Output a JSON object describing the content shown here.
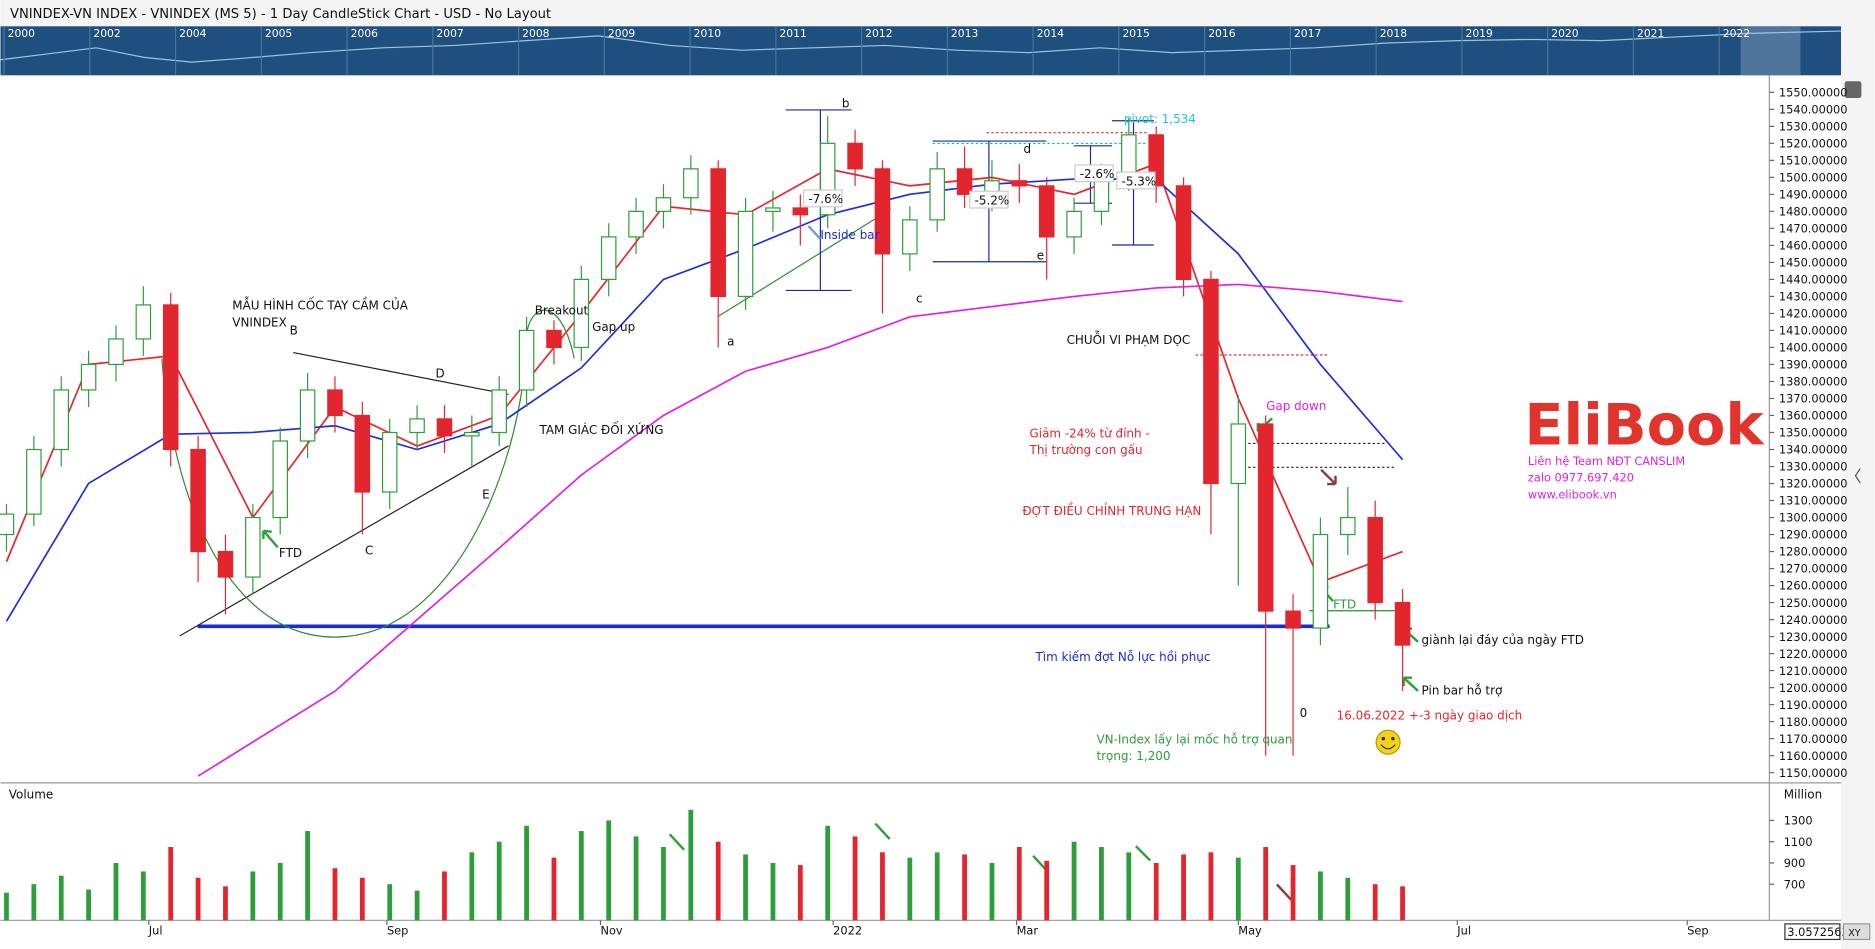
{
  "header": {
    "title": "VNINDEX-VN INDEX - VNINDEX (MS 5) - 1 Day CandleStick Chart - USD - No Layout"
  },
  "navigator": {
    "years": [
      2000,
      2002,
      2004,
      2005,
      2006,
      2007,
      2008,
      2009,
      2010,
      2011,
      2012,
      2013,
      2014,
      2015,
      2016,
      2017,
      2018,
      2019,
      2020,
      2021,
      2022
    ]
  },
  "chart_data": {
    "type": "candlestick",
    "candles": {
      "x": [
        0,
        1,
        2,
        3,
        4,
        5,
        6,
        7,
        8,
        9,
        10,
        11,
        12,
        13,
        14,
        15,
        16,
        17,
        18,
        19,
        20,
        21,
        22,
        23,
        24,
        25,
        26,
        27,
        28,
        29,
        30,
        31,
        32,
        33,
        34,
        35,
        36,
        37,
        38,
        39,
        40,
        41,
        42,
        43,
        44,
        45,
        46,
        47,
        48,
        49,
        50,
        51
      ],
      "open": [
        1290,
        1302,
        1340,
        1375,
        1390,
        1405,
        1425,
        1340,
        1280,
        1265,
        1300,
        1345,
        1375,
        1360,
        1315,
        1350,
        1358,
        1348,
        1350,
        1375,
        1410,
        1400,
        1440,
        1465,
        1480,
        1488,
        1505,
        1430,
        1480,
        1482,
        1478,
        1520,
        1505,
        1455,
        1475,
        1505,
        1490,
        1498,
        1495,
        1465,
        1480,
        1500,
        1525,
        1495,
        1440,
        1320,
        1355,
        1245,
        1235,
        1290,
        1300,
        1250
      ],
      "high": [
        1308,
        1348,
        1383,
        1398,
        1413,
        1436,
        1432,
        1348,
        1290,
        1308,
        1353,
        1385,
        1383,
        1368,
        1358,
        1366,
        1366,
        1360,
        1383,
        1418,
        1416,
        1448,
        1473,
        1488,
        1496,
        1513,
        1510,
        1488,
        1492,
        1490,
        1536,
        1528,
        1510,
        1483,
        1515,
        1518,
        1510,
        1508,
        1500,
        1488,
        1508,
        1535,
        1530,
        1500,
        1445,
        1372,
        1360,
        1255,
        1300,
        1318,
        1310,
        1258
      ],
      "low": [
        1280,
        1295,
        1330,
        1365,
        1380,
        1395,
        1330,
        1262,
        1243,
        1255,
        1290,
        1335,
        1350,
        1290,
        1305,
        1340,
        1338,
        1330,
        1342,
        1365,
        1390,
        1392,
        1430,
        1455,
        1470,
        1478,
        1400,
        1422,
        1468,
        1460,
        1470,
        1495,
        1420,
        1445,
        1468,
        1482,
        1480,
        1485,
        1440,
        1455,
        1472,
        1492,
        1485,
        1430,
        1290,
        1260,
        1160,
        1160,
        1225,
        1278,
        1240,
        1198
      ],
      "close": [
        1302,
        1340,
        1375,
        1390,
        1405,
        1425,
        1340,
        1280,
        1265,
        1300,
        1345,
        1375,
        1360,
        1315,
        1350,
        1358,
        1348,
        1350,
        1375,
        1410,
        1400,
        1440,
        1465,
        1480,
        1488,
        1505,
        1430,
        1480,
        1482,
        1478,
        1520,
        1505,
        1455,
        1475,
        1505,
        1490,
        1498,
        1495,
        1465,
        1480,
        1500,
        1525,
        1495,
        1440,
        1320,
        1355,
        1245,
        1235,
        1290,
        1300,
        1250,
        1225
      ]
    },
    "up_color": "#2e9e3a",
    "down_color": "#e3262e",
    "lines": [
      {
        "color": "#e8242c",
        "x": [
          0,
          3,
          6,
          9,
          12,
          15,
          18,
          21,
          24,
          27,
          30,
          33,
          36,
          39,
          42,
          45,
          48,
          51
        ],
        "values": [
          1274,
          1390,
          1395,
          1300,
          1365,
          1342,
          1360,
          1420,
          1483,
          1478,
          1505,
          1495,
          1500,
          1490,
          1508,
          1370,
          1262,
          1280
        ]
      },
      {
        "color": "#1b2fd6",
        "x": [
          0,
          3,
          6,
          9,
          12,
          15,
          18,
          21,
          24,
          27,
          30,
          33,
          36,
          39,
          42,
          45,
          48,
          51
        ],
        "values": [
          1239,
          1320,
          1349,
          1350,
          1354,
          1340,
          1355,
          1388,
          1440,
          1458,
          1478,
          1490,
          1496,
          1499,
          1499,
          1455,
          1390,
          1334
        ]
      },
      {
        "color": "#e020e0",
        "x": [
          7,
          9,
          12,
          15,
          18,
          21,
          24,
          27,
          30,
          33,
          36,
          39,
          42,
          45,
          48,
          51
        ],
        "values": [
          1148,
          1168,
          1198,
          1240,
          1282,
          1325,
          1360,
          1386,
          1400,
          1418,
          1424,
          1430,
          1435,
          1437,
          1433,
          1427
        ]
      }
    ],
    "xlim": [
      -0.22,
      64.4
    ],
    "xticks": [
      {
        "value": 5.2,
        "label": "Jul"
      },
      {
        "value": 13.9,
        "label": "Sep"
      },
      {
        "value": 21.7,
        "label": "Nov"
      },
      {
        "value": 30.2,
        "label": "2022"
      },
      {
        "value": 36.9,
        "label": "Mar"
      },
      {
        "value": 45,
        "label": "May"
      },
      {
        "value": 53,
        "label": "Jul"
      },
      {
        "value": 61.4,
        "label": "Sep"
      }
    ],
    "ylim": [
      1144,
      1560
    ],
    "yticks": [
      {
        "value": 1150,
        "label": "1150.00000"
      },
      {
        "value": 1160,
        "label": "1160.00000"
      },
      {
        "value": 1170,
        "label": "1170.00000"
      },
      {
        "value": 1180,
        "label": "1180.00000"
      },
      {
        "value": 1190,
        "label": "1190.00000"
      },
      {
        "value": 1200,
        "label": "1200.00000"
      },
      {
        "value": 1210,
        "label": "1210.00000"
      },
      {
        "value": 1220,
        "label": "1220.00000"
      },
      {
        "value": 1230,
        "label": "1230.00000"
      },
      {
        "value": 1240,
        "label": "1240.00000"
      },
      {
        "value": 1250,
        "label": "1250.00000"
      },
      {
        "value": 1260,
        "label": "1260.00000"
      },
      {
        "value": 1270,
        "label": "1270.00000"
      },
      {
        "value": 1280,
        "label": "1280.00000"
      },
      {
        "value": 1290,
        "label": "1290.00000"
      },
      {
        "value": 1300,
        "label": "1300.00000"
      },
      {
        "value": 1310,
        "label": "1310.00000"
      },
      {
        "value": 1320,
        "label": "1320.00000"
      },
      {
        "value": 1330,
        "label": "1330.00000"
      },
      {
        "value": 1340,
        "label": "1340.00000"
      },
      {
        "value": 1350,
        "label": "1350.00000"
      },
      {
        "value": 1360,
        "label": "1360.00000"
      },
      {
        "value": 1370,
        "label": "1370.00000"
      },
      {
        "value": 1380,
        "label": "1380.00000"
      },
      {
        "value": 1390,
        "label": "1390.00000"
      },
      {
        "value": 1400,
        "label": "1400.00000"
      },
      {
        "value": 1410,
        "label": "1410.00000"
      },
      {
        "value": 1420,
        "label": "1420.00000"
      },
      {
        "value": 1430,
        "label": "1430.00000"
      },
      {
        "value": 1440,
        "label": "1440.00000"
      },
      {
        "value": 1450,
        "label": "1450.00000"
      },
      {
        "value": 1460,
        "label": "1460.00000"
      },
      {
        "value": 1470,
        "label": "1470.00000"
      },
      {
        "value": 1480,
        "label": "1480.00000"
      },
      {
        "value": 1490,
        "label": "1490.00000"
      },
      {
        "value": 1500,
        "label": "1500.00000"
      },
      {
        "value": 1510,
        "label": "1510.00000"
      },
      {
        "value": 1520,
        "label": "1520.00000"
      },
      {
        "value": 1530,
        "label": "1530.00000"
      },
      {
        "value": 1540,
        "label": "1540.00000"
      },
      {
        "value": 1550,
        "label": "1550.00000"
      }
    ],
    "grid": false,
    "volume": {
      "label": "Volume",
      "unit": "Million",
      "values": [
        620,
        700,
        780,
        650,
        900,
        820,
        1050,
        760,
        680,
        820,
        900,
        1200,
        850,
        760,
        700,
        640,
        820,
        1000,
        1100,
        1250,
        950,
        1200,
        1300,
        1150,
        1050,
        1400,
        1100,
        980,
        900,
        880,
        1250,
        1150,
        1000,
        950,
        1000,
        980,
        900,
        1050,
        920,
        1100,
        1050,
        1000,
        900,
        980,
        1000,
        950,
        1050,
        880,
        820,
        760,
        700,
        680
      ],
      "ylim": [
        360,
        1620
      ],
      "yticks": [
        700,
        900,
        1100,
        1300
      ]
    },
    "last_value_label": "3.0572563",
    "annotations": [
      "MẪU HÌNH CỐC TAY CẦM CỦA",
      "VNINDEX",
      "B",
      "D",
      "C",
      "E",
      "FTD",
      "Breakout",
      "Gap up",
      "TAM GIÁC ĐỐI XỨNG",
      "a",
      "b",
      "c",
      "d",
      "e",
      "-7.6%",
      "-5.2%",
      "-2.6%",
      "-5.3%",
      "Inside bar",
      "pivot: 1,534",
      "CHUỖI VI PHẠM DỌC",
      "Giảm -24% từ đỉnh -",
      "Thị trường con gấu",
      "ĐỢT ĐIỀU CHỈNH TRUNG HẠN",
      "Gap down",
      "FTD",
      "giành lại đáy của ngày FTD",
      "Pin bar hỗ trợ",
      "16.06.2022 +-3 ngày giao dịch",
      "0",
      "Tìm kiếm đợt Nỗ lực hồi phục",
      "VN-Index lấy lại mốc hỗ trợ quan",
      "trọng: 1,200"
    ]
  },
  "logo": {
    "name": "EliBook",
    "lines": [
      "Liên hệ Team NĐT CANSLIM",
      "zalo 0977.697.420",
      "www.elibook.vn"
    ]
  }
}
